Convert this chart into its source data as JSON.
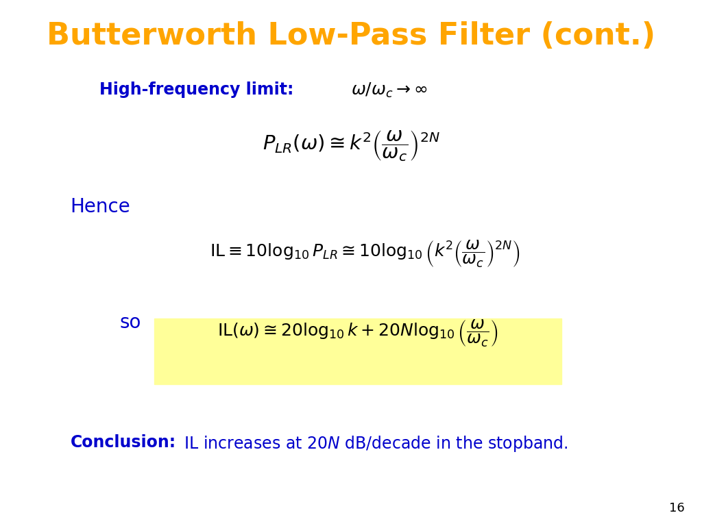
{
  "title": "Butterworth Low-Pass Filter (cont.)",
  "title_color": "#FFA500",
  "title_fontsize": 32,
  "bg_color": "#FFFFFF",
  "blue_color": "#0000CC",
  "highlight_bg": "#FFFF99",
  "page_number": "16",
  "line1_label": "High-frequency limit:",
  "line1_math": "$\\omega / \\omega_c \\rightarrow \\infty$",
  "eq1": "$P_{LR}\\left(\\omega\\right) \\cong k^2 \\left(\\dfrac{\\omega}{\\omega_c}\\right)^{2N}$",
  "hence": "Hence",
  "eq2": "$\\mathrm{IL} \\equiv 10\\log_{10} P_{LR} \\cong 10\\log_{10} \\left( k^2 \\left(\\dfrac{\\omega}{\\omega_c}\\right)^{2N} \\right)$",
  "so": "so",
  "eq3": "$\\mathrm{IL}\\left(\\omega\\right) \\cong 20\\log_{10} k + 20N \\log_{10} \\left(\\dfrac{\\omega}{\\omega_c}\\right)$",
  "conclusion_bold": "Conclusion:",
  "conclusion_rest": " IL increases at $20N$ dB/decade in the stopband."
}
